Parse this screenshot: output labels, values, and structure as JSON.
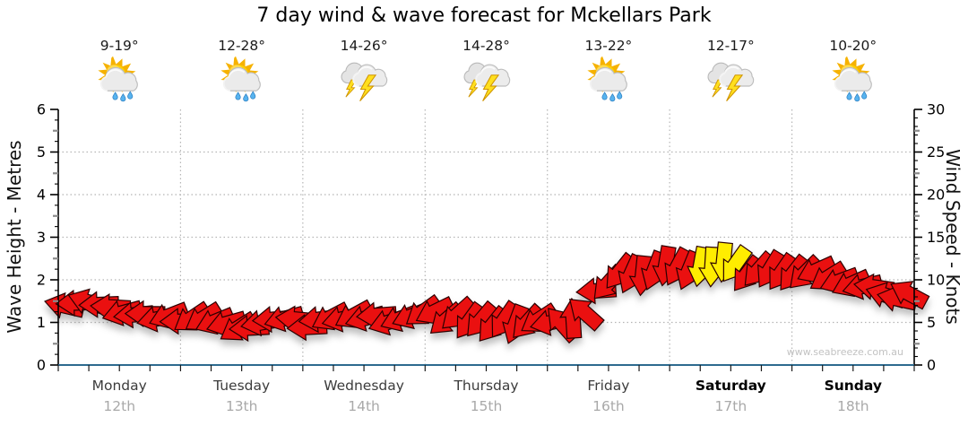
{
  "title": "7 day wind & wave forecast for Mckellars Park",
  "watermark": "www.seabreeze.com.au",
  "axes": {
    "left_title": "Wave Height - Metres",
    "right_title": "Wind Speed - Knots",
    "left_ticks": [
      0,
      1,
      2,
      3,
      4,
      5,
      6
    ],
    "right_ticks": [
      0,
      5,
      10,
      15,
      20,
      25,
      30
    ]
  },
  "forecast_days": [
    {
      "day": "Monday",
      "date": "12th",
      "temp": "9-19°",
      "icon": "sun-cloud-rain-icon",
      "weekend": false
    },
    {
      "day": "Tuesday",
      "date": "13th",
      "temp": "12-28°",
      "icon": "sun-cloud-rain-icon",
      "weekend": false
    },
    {
      "day": "Wednesday",
      "date": "14th",
      "temp": "14-26°",
      "icon": "storm-icon",
      "weekend": false
    },
    {
      "day": "Thursday",
      "date": "15th",
      "temp": "14-28°",
      "icon": "storm-icon",
      "weekend": false
    },
    {
      "day": "Friday",
      "date": "16th",
      "temp": "13-22°",
      "icon": "sun-cloud-rain-icon",
      "weekend": false
    },
    {
      "day": "Saturday",
      "date": "17th",
      "temp": "12-17°",
      "icon": "storm-icon",
      "weekend": true
    },
    {
      "day": "Sunday",
      "date": "18th",
      "temp": "10-20°",
      "icon": "sun-cloud-rain-icon",
      "weekend": true
    }
  ],
  "chart_data": {
    "type": "line",
    "title": "7 day wind & wave forecast for Mckellars Park",
    "x_unit": "hours from Monday 00:00",
    "x_step_hours": 6,
    "x_total_hours": 168,
    "categories": [
      "Monday 12th",
      "Tuesday 13th",
      "Wednesday 14th",
      "Thursday 15th",
      "Friday 16th",
      "Saturday 17th",
      "Sunday 18th"
    ],
    "y_left": {
      "label": "Wave Height - Metres",
      "range": [
        0,
        6
      ],
      "major_tick": 1,
      "minor_tick": 0.25
    },
    "y_right": {
      "label": "Wind Speed - Knots",
      "range": [
        0,
        30
      ],
      "major_tick": 5,
      "minor_tick": 1
    },
    "grid": {
      "horizontal_dotted_at_metres": [
        1,
        2,
        3,
        4,
        5
      ],
      "vertical_dotted_at_day_starts": [
        1,
        2,
        3,
        4,
        5,
        6
      ]
    },
    "series": [
      {
        "name": "Wind speed (knots), 6-hourly",
        "values": [
          7.4,
          7.1,
          6.7,
          6.1,
          5.3,
          4.8,
          4.6,
          5.1,
          4.8,
          5.7,
          5.3,
          5.6,
          5.8,
          5.6,
          5.2,
          4.8,
          5.0,
          5.6,
          10.2,
          11.0,
          11.2,
          11.0,
          10.9,
          10.8,
          10.4,
          10.7,
          9.7,
          8.5,
          8.0
        ]
      },
      {
        "name": "Wind arrow direction (deg, 0=east 90=south)",
        "values": [
          180,
          186,
          178,
          172,
          165,
          150,
          162,
          180,
          172,
          158,
          168,
          160,
          148,
          128,
          138,
          122,
          175,
          268,
          120,
          108,
          108,
          102,
          112,
          118,
          132,
          148,
          162,
          196,
          204
        ]
      }
    ],
    "arrow_colors": {
      "normal": "#ea1010",
      "strong": "#ffed00",
      "outline": "#2a0000"
    },
    "strong_wind_window_hours": [
      126,
      135
    ],
    "legend": "none"
  },
  "layout_colors": {
    "axis_line": "#000000",
    "x_axis_line": "#2e6b8f",
    "gridline": "#b5b5b5",
    "day_label": "#3c3c3c",
    "date_label": "#a9a9a9",
    "watermark": "#c2c2c2"
  }
}
